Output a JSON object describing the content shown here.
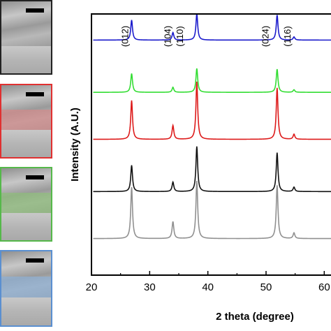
{
  "sem_panels": [
    {
      "name": "sem-panel-1",
      "border": "#222222",
      "film": ""
    },
    {
      "name": "sem-panel-2",
      "border": "#e03030",
      "film": "#d48a8a"
    },
    {
      "name": "sem-panel-3",
      "border": "#55b84a",
      "film": "#8fbf7a"
    },
    {
      "name": "sem-panel-4",
      "border": "#5a8fd0",
      "film": "#8fb0d6"
    }
  ],
  "chart_data": {
    "type": "line",
    "title": "",
    "xlabel": "2 theta (degree)",
    "ylabel": "Intensity (A.U.)",
    "xlim": [
      20,
      62
    ],
    "xticks": [
      "20",
      "30",
      "40",
      "50",
      "60"
    ],
    "grid": false,
    "legend": "none",
    "peaks": [
      26.9,
      34.0,
      38.1,
      51.9,
      54.8
    ],
    "peak_labels": [
      {
        "label": "(012)",
        "x": 26.3
      },
      {
        "label": "(104)",
        "x": 33.6
      },
      {
        "label": "(110)",
        "x": 35.7
      },
      {
        "label": "(024)",
        "x": 50.4
      },
      {
        "label": "(116)",
        "x": 54.2
      }
    ],
    "series": [
      {
        "color": "#1a1acc",
        "baseline": 0.9,
        "peak_heights": [
          0.32,
          0.12,
          0.42,
          0.4,
          0.05
        ]
      },
      {
        "color": "#33dd33",
        "baseline": 0.7,
        "peak_heights": [
          0.3,
          0.08,
          0.38,
          0.37,
          0.04
        ]
      },
      {
        "color": "#dd1a1a",
        "baseline": 0.52,
        "peak_heights": [
          0.62,
          0.22,
          0.92,
          0.82,
          0.08
        ]
      },
      {
        "color": "#111111",
        "baseline": 0.32,
        "peak_heights": [
          0.42,
          0.15,
          0.72,
          0.62,
          0.07
        ]
      },
      {
        "color": "#909090",
        "baseline": 0.14,
        "peak_heights": [
          0.82,
          0.27,
          0.92,
          0.85,
          0.09
        ]
      }
    ]
  }
}
